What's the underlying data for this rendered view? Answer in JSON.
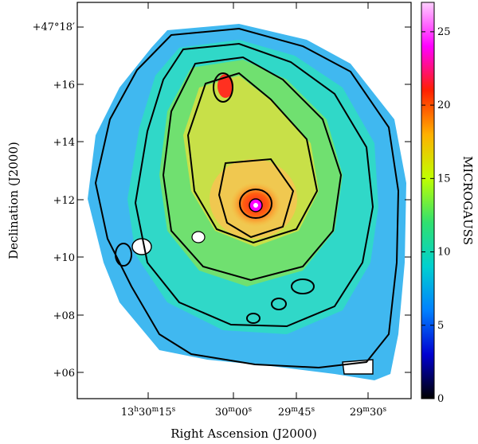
{
  "chart_data": {
    "type": "heatmap",
    "title": "",
    "xlabel": "Right Ascension (J2000)",
    "ylabel": "Declination (J2000)",
    "x_tick_labels": [
      {
        "h": "13",
        "hu": "h",
        "m": "30",
        "mu": "m",
        "s": "15",
        "su": "s"
      },
      {
        "m": "30",
        "mu": "m",
        "s": "00",
        "su": "s"
      },
      {
        "m": "29",
        "mu": "m",
        "s": "45",
        "su": "s"
      },
      {
        "m": "29",
        "mu": "m",
        "s": "30",
        "su": "s"
      }
    ],
    "y_tick_labels": [
      "+47°18′",
      "+16",
      "+14",
      "+12",
      "+10",
      "+08",
      "+06"
    ],
    "colorbar": {
      "label": "MICROGAUSS",
      "range": [
        0,
        27
      ],
      "ticks": [
        "0",
        "5",
        "10",
        "15",
        "20",
        "25"
      ],
      "colormap": [
        "#000000",
        "#0000d0",
        "#0080ff",
        "#00d0d0",
        "#30e070",
        "#c0ff00",
        "#ffb000",
        "#ff2000",
        "#ff00ff",
        "#ffd0ff"
      ]
    },
    "features": {
      "core_peak_uG": 27,
      "secondary_peak_uG": 21,
      "disk_level_uG": 12,
      "contours": "black contour lines at increasing field strength"
    },
    "grid": false
  }
}
